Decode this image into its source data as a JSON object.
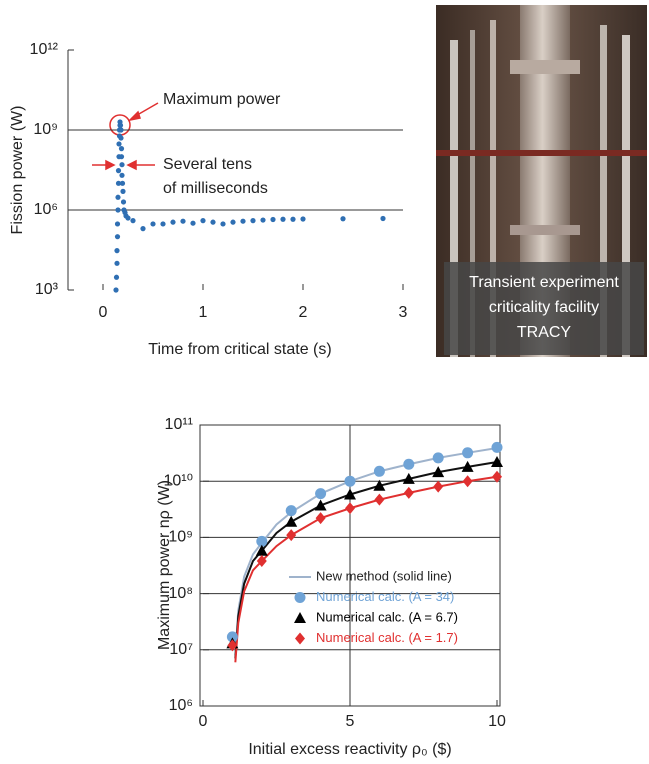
{
  "chart_data": [
    {
      "type": "scatter",
      "xlabel": "Time from critical state (s)",
      "ylabel": "Fission power (W)",
      "log_y": true,
      "grid": true,
      "color": "#2f6fb3",
      "xlim": [
        -0.35,
        3
      ],
      "xticks": [
        0,
        1,
        2,
        3
      ],
      "ylim": [
        1000,
        1000000000000
      ],
      "yticks": [
        {
          "value": 1000,
          "label": "10³"
        },
        {
          "value": 1000000,
          "label": "10⁶"
        },
        {
          "value": 1000000000,
          "label": "10⁹"
        },
        {
          "value": 1000000000000,
          "label": "10¹²"
        }
      ],
      "annotations": [
        {
          "lines": [
            "Maximum power"
          ]
        },
        {
          "lines": [
            "Several tens",
            "of milliseconds"
          ]
        }
      ],
      "x": [
        0.13,
        0.135,
        0.14,
        0.14,
        0.145,
        0.145,
        0.15,
        0.15,
        0.155,
        0.155,
        0.16,
        0.16,
        0.165,
        0.165,
        0.17,
        0.17,
        0.175,
        0.18,
        0.18,
        0.185,
        0.185,
        0.19,
        0.19,
        0.195,
        0.2,
        0.205,
        0.21,
        0.22,
        0.23,
        0.25,
        0.3,
        0.4,
        0.5,
        0.6,
        0.7,
        0.8,
        0.9,
        1.0,
        1.1,
        1.2,
        1.3,
        1.4,
        1.5,
        1.6,
        1.7,
        1.8,
        1.9,
        2.0,
        2.4,
        2.8
      ],
      "values": [
        1000,
        3000,
        10000,
        30000,
        100000,
        300000,
        1000000,
        3000000,
        10000000,
        30000000,
        100000000,
        300000000,
        600000000,
        1000000000,
        1500000000,
        2000000000,
        1500000000,
        1000000000,
        500000000,
        200000000,
        100000000,
        50000000,
        20000000,
        10000000,
        5000000,
        2000000,
        1000000,
        800000,
        600000,
        500000,
        400000,
        200000,
        300000,
        300000,
        350000,
        380000,
        320000,
        400000,
        350000,
        300000,
        350000,
        380000,
        400000,
        420000,
        440000,
        450000,
        450000,
        460000,
        470000,
        480000
      ]
    },
    {
      "type": "line",
      "xlabel": "Initial excess reactivity ρ₀ ($)",
      "ylabel": "Maximum power nρ (W)",
      "log_y": true,
      "grid": true,
      "xlim": [
        0,
        10
      ],
      "xticks": [
        0,
        5,
        10
      ],
      "ylim": [
        1000000,
        100000000000
      ],
      "yticks": [
        {
          "value": 1000000,
          "label": "10⁶"
        },
        {
          "value": 10000000,
          "label": "10⁷"
        },
        {
          "value": 100000000,
          "label": "10⁸"
        },
        {
          "value": 1000000000,
          "label": "10⁹"
        },
        {
          "value": 10000000000,
          "label": "10¹⁰"
        },
        {
          "value": 100000000000,
          "label": "10¹¹"
        }
      ],
      "series": [
        {
          "name": "New method (solid line)",
          "color": "#9fb3cc",
          "x": [
            1.1,
            1.2,
            1.4,
            1.7,
            2,
            2.5,
            3,
            4,
            5,
            6,
            7,
            8,
            9,
            10
          ],
          "values": [
            8000000,
            50000000,
            200000000,
            500000000,
            800000000,
            1700000000,
            2800000000,
            6000000000,
            10000000000,
            15000000000,
            20000000000,
            26000000000,
            32000000000,
            39000000000
          ]
        },
        {
          "color": "#111111",
          "x": [
            1.1,
            1.2,
            1.4,
            1.7,
            2,
            2.5,
            3,
            4,
            5,
            6,
            7,
            8,
            9,
            10
          ],
          "values": [
            7000000,
            40000000,
            150000000,
            380000000,
            580000000,
            1200000000,
            1900000000,
            3700000000,
            5800000000,
            8300000000,
            11000000000,
            14500000000,
            18000000000,
            22000000000
          ]
        },
        {
          "color": "#e03030",
          "x": [
            1.1,
            1.2,
            1.4,
            1.7,
            2,
            2.5,
            3,
            4,
            5,
            6,
            7,
            8,
            9,
            10
          ],
          "values": [
            6000000,
            30000000,
            110000000,
            260000000,
            380000000,
            700000000,
            1100000000,
            2200000000,
            3300000000,
            4700000000,
            6200000000,
            8000000000,
            10000000000,
            12000000000
          ]
        },
        {
          "name": "Numerical calc. (A = 34)",
          "marker": "circle",
          "color": "#6fa3d6",
          "x": [
            1,
            2,
            3,
            4,
            5,
            6,
            7,
            8,
            9,
            10
          ],
          "values": [
            17000000,
            850000000,
            3000000000,
            6000000000,
            10000000000,
            15000000000,
            20000000000,
            26000000000,
            32000000000,
            40000000000
          ]
        },
        {
          "name": "Numerical calc. (A = 6.7)",
          "marker": "triangle",
          "color": "#000000",
          "x": [
            1,
            2,
            3,
            4,
            5,
            6,
            7,
            8,
            9,
            10
          ],
          "values": [
            13000000,
            580000000,
            1900000000,
            3700000000,
            5800000000,
            8300000000,
            11000000000,
            14500000000,
            18000000000,
            22000000000
          ]
        },
        {
          "name": "Numerical calc. (A = 1.7)",
          "marker": "diamond",
          "color": "#e03030",
          "x": [
            1,
            2,
            3,
            4,
            5,
            6,
            7,
            8,
            9,
            10
          ],
          "values": [
            12000000,
            380000000,
            1100000000,
            2200000000,
            3300000000,
            4700000000,
            6200000000,
            8000000000,
            10000000000,
            12000000000
          ]
        }
      ]
    }
  ],
  "image": {
    "caption": [
      "Transient experiment",
      "criticality facility",
      "TRACY"
    ]
  }
}
